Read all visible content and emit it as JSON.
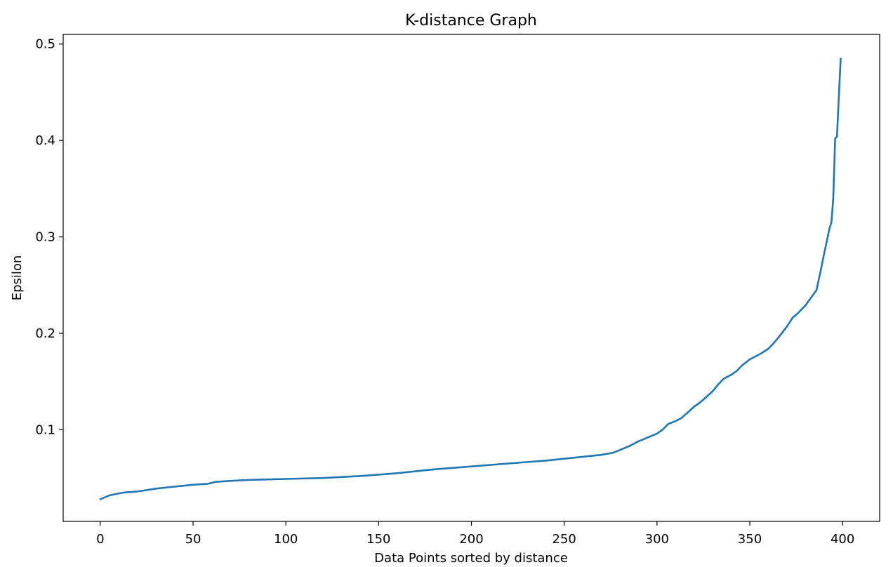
{
  "chart_data": {
    "type": "line",
    "title": "K-distance Graph",
    "xlabel": "Data Points sorted by distance",
    "ylabel": "Epsilon",
    "xlim": [
      -20,
      420
    ],
    "ylim": [
      0.005,
      0.51
    ],
    "xticks": [
      0,
      50,
      100,
      150,
      200,
      250,
      300,
      350,
      400
    ],
    "yticks": [
      0.1,
      0.2,
      0.3,
      0.4,
      0.5
    ],
    "xtick_labels": [
      "0",
      "50",
      "100",
      "150",
      "200",
      "250",
      "300",
      "350",
      "400"
    ],
    "ytick_labels": [
      "0.1",
      "0.2",
      "0.3",
      "0.4",
      "0.5"
    ],
    "grid": false,
    "line_color": "#1f77b4",
    "series": [
      {
        "x": [
          0,
          5,
          10,
          13,
          20,
          30,
          40,
          50,
          58,
          62,
          70,
          80,
          100,
          120,
          140,
          160,
          180,
          200,
          220,
          240,
          250,
          260,
          270,
          276,
          280,
          285,
          290,
          295,
          300,
          303,
          306,
          310,
          313,
          316,
          320,
          323,
          326,
          330,
          333,
          336,
          340,
          343,
          346,
          350,
          353,
          356,
          360,
          363,
          366,
          370,
          373,
          376,
          380,
          383,
          386,
          388,
          390,
          392,
          393,
          394,
          395,
          396,
          397,
          398,
          399
        ],
        "y": [
          0.028,
          0.032,
          0.034,
          0.035,
          0.036,
          0.039,
          0.041,
          0.043,
          0.044,
          0.046,
          0.047,
          0.048,
          0.049,
          0.05,
          0.052,
          0.055,
          0.059,
          0.062,
          0.065,
          0.068,
          0.07,
          0.072,
          0.074,
          0.076,
          0.079,
          0.083,
          0.088,
          0.092,
          0.096,
          0.1,
          0.106,
          0.109,
          0.112,
          0.117,
          0.124,
          0.128,
          0.133,
          0.14,
          0.147,
          0.153,
          0.157,
          0.161,
          0.167,
          0.173,
          0.176,
          0.179,
          0.184,
          0.19,
          0.197,
          0.207,
          0.216,
          0.221,
          0.229,
          0.237,
          0.245,
          0.263,
          0.282,
          0.3,
          0.309,
          0.315,
          0.34,
          0.402,
          0.404,
          0.445,
          0.485
        ]
      }
    ]
  }
}
